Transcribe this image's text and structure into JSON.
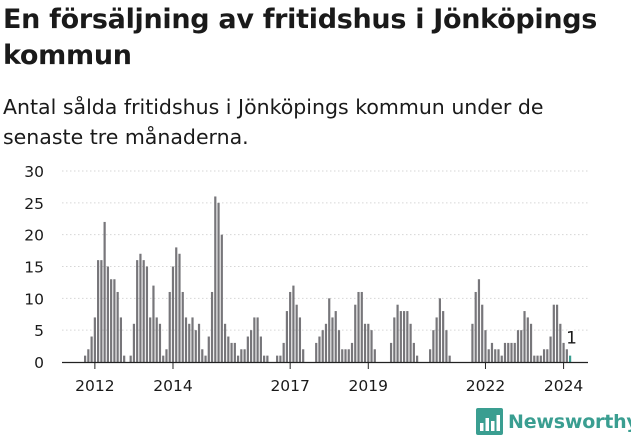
{
  "title": "En försäljning av fritidshus i Jönköpings kommun",
  "subtitle": "Antal sålda fritidshus i Jönköpings kommun under de senaste tre månaderna.",
  "brand": "Newsworthy",
  "colors": {
    "bar": "#77767a",
    "highlight": "#3a9e91",
    "grid": "#d6d6d6",
    "text": "#1a1a1a"
  },
  "chart_data": {
    "type": "bar",
    "title": "En försäljning av fritidshus i Jönköpings kommun",
    "subtitle": "Antal sålda fritidshus i Jönköpings kommun under de senaste tre månaderna.",
    "xlabel": "",
    "ylabel": "",
    "ylim": [
      0,
      30
    ],
    "yticks": [
      0,
      5,
      10,
      15,
      20,
      25,
      30
    ],
    "xtick_labels": [
      {
        "label": "2012",
        "index": 3
      },
      {
        "label": "2014",
        "index": 27
      },
      {
        "label": "2017",
        "index": 63
      },
      {
        "label": "2019",
        "index": 87
      },
      {
        "label": "2022",
        "index": 123
      },
      {
        "label": "2024",
        "index": 147
      }
    ],
    "grid": true,
    "highlight_label": "1",
    "values": [
      1,
      2,
      4,
      7,
      16,
      16,
      22,
      15,
      13,
      13,
      11,
      7,
      1,
      0,
      1,
      6,
      16,
      17,
      16,
      15,
      7,
      12,
      7,
      6,
      1,
      2,
      11,
      15,
      18,
      17,
      11,
      7,
      6,
      7,
      5,
      6,
      2,
      1,
      4,
      11,
      26,
      25,
      20,
      6,
      4,
      3,
      3,
      1,
      2,
      2,
      4,
      5,
      7,
      7,
      4,
      1,
      1,
      0,
      0,
      1,
      1,
      3,
      8,
      11,
      12,
      9,
      7,
      2,
      0,
      0,
      0,
      3,
      4,
      5,
      6,
      10,
      7,
      8,
      5,
      2,
      2,
      2,
      3,
      9,
      11,
      11,
      6,
      6,
      5,
      2,
      0,
      0,
      0,
      0,
      3,
      7,
      9,
      8,
      8,
      8,
      6,
      3,
      1,
      0,
      0,
      0,
      2,
      5,
      7,
      10,
      8,
      5,
      1,
      0,
      0,
      0,
      0,
      0,
      0,
      6,
      11,
      13,
      9,
      5,
      2,
      3,
      2,
      2,
      1,
      3,
      3,
      3,
      3,
      5,
      5,
      8,
      7,
      6,
      1,
      1,
      1,
      2,
      2,
      4,
      9,
      9,
      6,
      3,
      2,
      1
    ]
  }
}
